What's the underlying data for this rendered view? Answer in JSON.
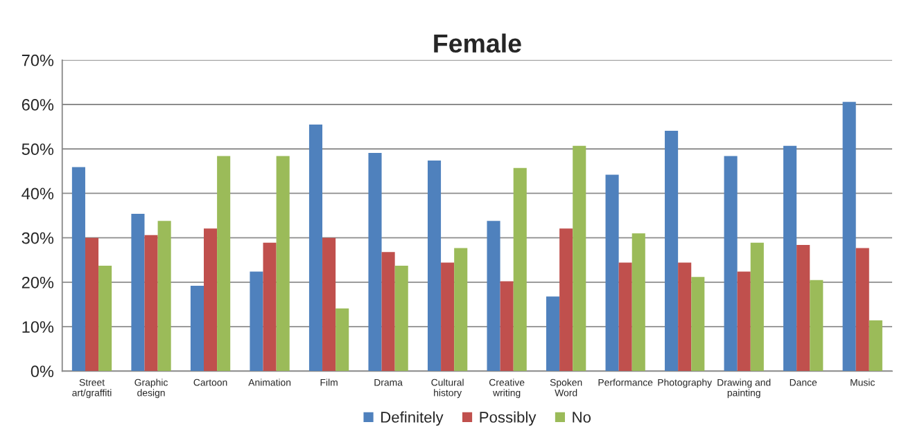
{
  "chart_data": {
    "type": "bar",
    "title": "Female",
    "categories": [
      "Street\nart/graffiti",
      "Graphic\ndesign",
      "Cartoon",
      "Animation",
      "Film",
      "Drama",
      "Cultural\nhistory",
      "Creative\nwriting",
      "Spoken\nWord",
      "Performance",
      "Photography",
      "Drawing and\npainting",
      "Dance",
      "Music"
    ],
    "series": [
      {
        "name": "Definitely",
        "color": "#4f81bd",
        "values": [
          45.9,
          35.4,
          19.2,
          22.4,
          55.5,
          49.1,
          47.4,
          33.8,
          16.8,
          44.2,
          54.1,
          48.4,
          50.7,
          60.6
        ]
      },
      {
        "name": "Possibly",
        "color": "#c0504d",
        "values": [
          30.0,
          30.6,
          32.1,
          28.9,
          30.0,
          26.8,
          24.4,
          20.2,
          32.1,
          24.4,
          24.4,
          22.4,
          28.4,
          27.7
        ]
      },
      {
        "name": "No",
        "color": "#9bbb59",
        "values": [
          23.7,
          33.8,
          48.4,
          48.4,
          14.1,
          23.7,
          27.7,
          45.7,
          50.7,
          31.0,
          21.2,
          28.9,
          20.5,
          11.4
        ]
      }
    ],
    "ylim": [
      0,
      70
    ],
    "yticks": [
      {
        "value": 0,
        "label": "0%"
      },
      {
        "value": 10,
        "label": "10%"
      },
      {
        "value": 20,
        "label": "20%"
      },
      {
        "value": 30,
        "label": "30%"
      },
      {
        "value": 40,
        "label": "40%"
      },
      {
        "value": 50,
        "label": "50%"
      },
      {
        "value": 60,
        "label": "60%"
      },
      {
        "value": 70,
        "label": "70%"
      }
    ],
    "grid": "y",
    "legend": "bottom"
  }
}
